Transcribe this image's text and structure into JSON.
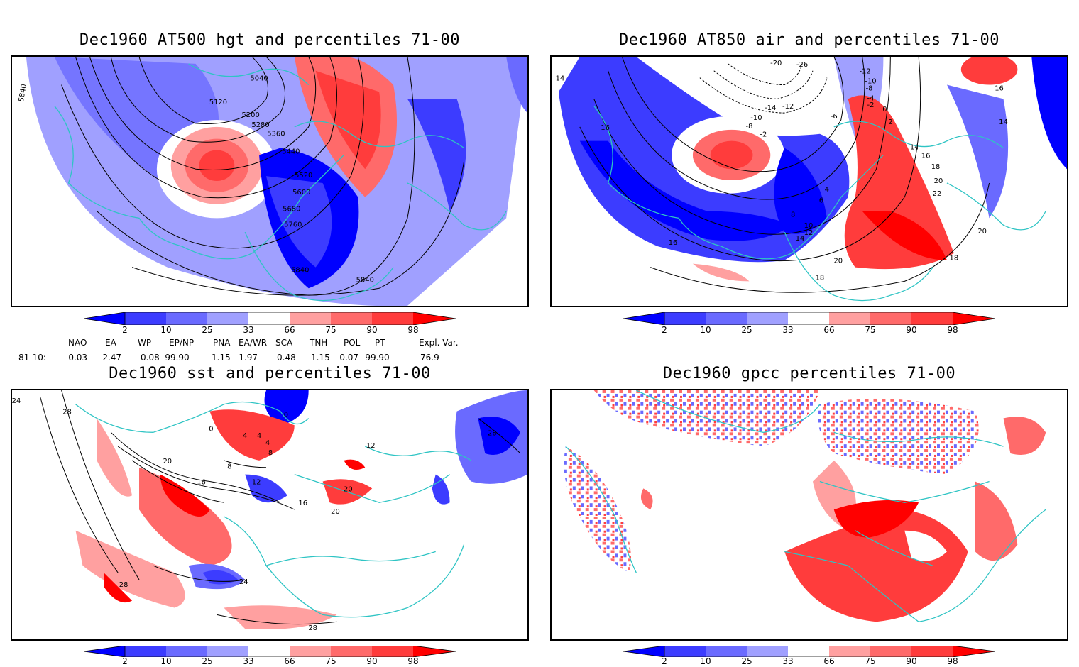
{
  "panels": [
    {
      "title": "Dec1960 AT500 hgt and percentiles 71-00",
      "contour_labels": [
        "5840",
        "5040",
        "5120",
        "5200",
        "5280",
        "5360",
        "5440",
        "5520",
        "5600",
        "5680",
        "5760",
        "5840",
        "5840"
      ]
    },
    {
      "title": "Dec1960 AT850 air and percentiles 71-00",
      "contour_labels": [
        "14",
        "16",
        "16",
        "-20",
        "-26",
        "-12",
        "-10",
        "-8",
        "-4",
        "-2",
        "0",
        "2",
        "-6",
        "-12",
        "-14",
        "-10",
        "-8",
        "-2",
        "4",
        "6",
        "8",
        "10",
        "12",
        "14",
        "14",
        "16",
        "18",
        "20",
        "22",
        "20",
        "18",
        "20",
        "18",
        "16",
        "14"
      ]
    },
    {
      "title": "Dec1960 sst and percentiles 71-00",
      "contour_labels": [
        "24",
        "28",
        "0",
        "0",
        "4",
        "4",
        "4",
        "8",
        "8",
        "12",
        "12",
        "16",
        "16",
        "20",
        "20",
        "20",
        "24",
        "28",
        "28",
        "28"
      ]
    },
    {
      "title": "Dec1960 gpcc percentiles 71-00",
      "contour_labels": []
    }
  ],
  "colorbar": {
    "labels": [
      "2",
      "10",
      "25",
      "33",
      "66",
      "75",
      "90",
      "98"
    ],
    "colors": [
      "#0000ff",
      "#3c3cff",
      "#6a6aff",
      "#a0a0ff",
      "#ffffff",
      "#ffa0a0",
      "#ff6a6a",
      "#ff3c3c",
      "#ff0000"
    ]
  },
  "indices": {
    "header": [
      "NAO",
      "EA",
      "WP",
      "EP/NP",
      "PNA",
      "EA/WR",
      "SCA",
      "TNH",
      "POL",
      "PT",
      "Expl. Var."
    ],
    "row_label": "81-10:",
    "values": [
      "-0.03",
      "-2.47",
      "0.08",
      "-99.90",
      "1.15",
      "-1.97",
      "0.48",
      "1.15",
      "-0.07",
      "-99.90",
      "76.9"
    ]
  },
  "colors": {
    "coast": "#2ec4c4",
    "contour": "#000000",
    "blue": "#0000ff",
    "red": "#ff0000"
  }
}
